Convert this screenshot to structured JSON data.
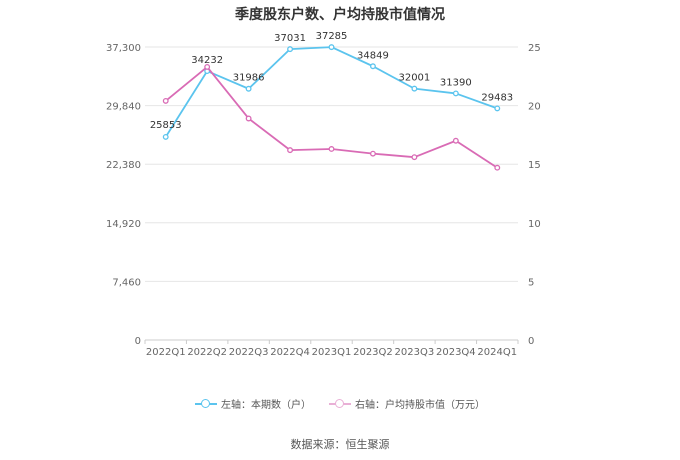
{
  "chart_data": {
    "type": "line",
    "title": "季度股东户数、户均持股市值情况",
    "categories": [
      "2022Q1",
      "2022Q2",
      "2022Q3",
      "2022Q4",
      "2023Q1",
      "2023Q2",
      "2023Q3",
      "2023Q4",
      "2024Q1"
    ],
    "series": [
      {
        "name": "左轴：本期数（户）",
        "axis": "left",
        "color": "#5bc4ee",
        "values": [
          25853,
          34232,
          31986,
          37031,
          37285,
          34849,
          32001,
          31390,
          29483
        ],
        "labels": [
          "25853",
          "34232",
          "31986",
          "37031",
          "37285",
          "34849",
          "32001",
          "31390",
          "29483"
        ]
      },
      {
        "name": "右轴：户均持股市值（万元）",
        "axis": "right",
        "color": "#d96bb5",
        "values": [
          20.4,
          23.3,
          18.9,
          16.2,
          16.3,
          15.9,
          15.6,
          17.0,
          14.7
        ]
      }
    ],
    "y_left": {
      "min": 0,
      "max": 37300,
      "ticks": [
        0,
        7460,
        14920,
        22380,
        29840,
        37300
      ],
      "tick_labels": [
        "0",
        "7,460",
        "14,920",
        "22,380",
        "29,840",
        "37,300"
      ]
    },
    "y_right": {
      "min": 0,
      "max": 25,
      "ticks": [
        0,
        5,
        10,
        15,
        20,
        25
      ],
      "tick_labels": [
        "0",
        "5",
        "10",
        "15",
        "20",
        "25"
      ]
    },
    "grid": true,
    "legend": "bottom"
  },
  "source": "数据来源：恒生聚源"
}
